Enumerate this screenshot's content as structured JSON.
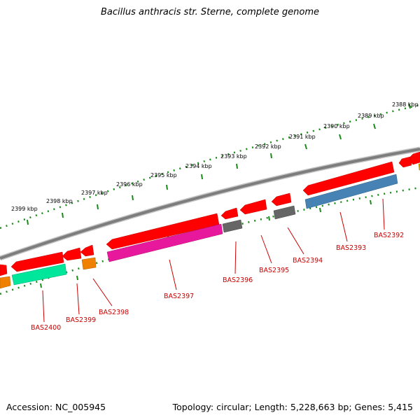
{
  "title": "Bacillus anthracis str. Sterne, complete genome",
  "accession": "Accession: NC_005945",
  "summary": "Topology: circular; Length: 5,228,663 bp; Genes: 5,415",
  "scale_labels": [
    "2388 kbp",
    "2389 kbp",
    "2390 kbp",
    "2391 kbp",
    "2392 kbp",
    "2393 kbp",
    "2394 kbp",
    "2395 kbp",
    "2396 kbp",
    "2397 kbp",
    "2398 kbp",
    "2399 kbp"
  ],
  "gene_labels": [
    "BAS2392",
    "BAS2393",
    "BAS2394",
    "BAS2395",
    "BAS2396",
    "BAS2397",
    "BAS2398",
    "BAS2399",
    "BAS2400"
  ],
  "colors": {
    "backbone": "#7d7d7d",
    "cds": "#ff0000",
    "tick": "#1a8a1a",
    "label": "#cc0000",
    "steelblue": "#4682b4",
    "grey": "#666666",
    "magenta": "#e8189c",
    "orange": "#f08000",
    "green": "#00e69a"
  }
}
